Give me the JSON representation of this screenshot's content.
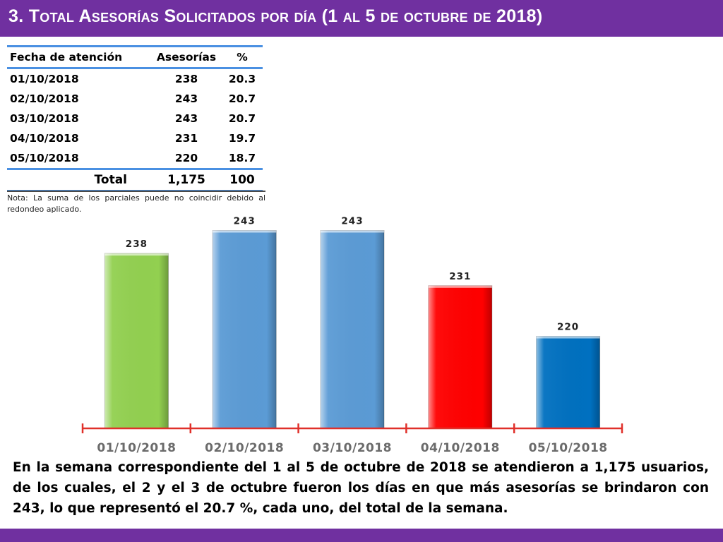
{
  "header": {
    "title": "3.  Total Asesorías Solicitados por día  (1 al 5 de octubre de 2018)"
  },
  "table": {
    "columns": [
      "Fecha de atención",
      "Asesorías",
      "%"
    ],
    "rows": [
      {
        "date": "01/10/2018",
        "count": "238",
        "pct": "20.3"
      },
      {
        "date": "02/10/2018",
        "count": "243",
        "pct": "20.7"
      },
      {
        "date": "03/10/2018",
        "count": "243",
        "pct": "20.7"
      },
      {
        "date": "04/10/2018",
        "count": "231",
        "pct": "19.7"
      },
      {
        "date": "05/10/2018",
        "count": "220",
        "pct": "18.7"
      }
    ],
    "total": {
      "label": "Total",
      "count": "1,175",
      "pct": "100"
    },
    "note": "Nota: La suma de los parciales puede no coincidir debido al redondeo aplicado."
  },
  "chart_data": {
    "type": "bar",
    "categories": [
      "01/10/2018",
      "02/10/2018",
      "03/10/2018",
      "04/10/2018",
      "05/10/2018"
    ],
    "values": [
      238,
      243,
      243,
      231,
      220
    ],
    "data_labels": [
      "238",
      "243",
      "243",
      "231",
      "220"
    ],
    "colors": [
      "#92d050",
      "#5b9bd5",
      "#5b9bd5",
      "#ff0000",
      "#0070c0"
    ],
    "axis_color": "#e0302a",
    "ylim": [
      200,
      244
    ],
    "grid": false,
    "title": "",
    "xlabel": "",
    "ylabel": ""
  },
  "summary": {
    "text": "En la semana correspondiente del 1 al 5 de octubre de 2018 se atendieron a 1,175 usuarios, de los cuales, el 2 y el 3 de octubre fueron los días en que más asesorías se brindaron con 243, lo que representó el 20.7 %, cada uno, del total de la semana."
  },
  "theme": {
    "header_color": "#7030a0",
    "table_rule_color": "#4a90e2"
  }
}
